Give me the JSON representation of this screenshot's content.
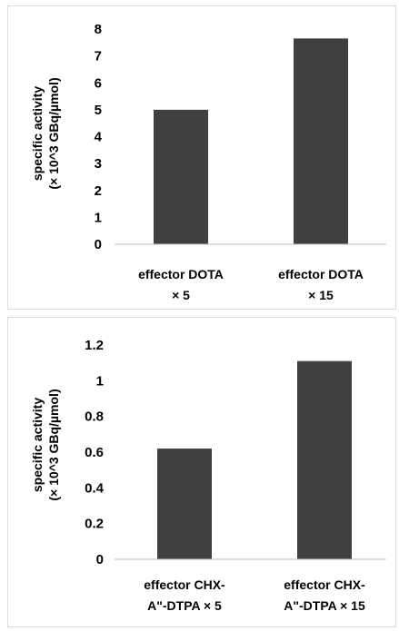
{
  "chart_data": [
    {
      "type": "bar",
      "categories": [
        "effector  DOTA × 5",
        "effector  DOTA × 15"
      ],
      "category_lines": [
        [
          "effector  DOTA",
          "× 5"
        ],
        [
          "effector  DOTA",
          "× 15"
        ]
      ],
      "values": [
        5.0,
        7.65
      ],
      "ylabel": "specific activity",
      "ylabel_line2": "(× 10^3 GBq/µmol)",
      "ylim": [
        0,
        8
      ],
      "yticks": [
        0,
        1,
        2,
        3,
        4,
        5,
        6,
        7,
        8
      ],
      "ytick_labels": [
        "0",
        "1",
        "2",
        "3",
        "4",
        "5",
        "6",
        "7",
        "8"
      ],
      "grid": false,
      "bar_color": "#404040"
    },
    {
      "type": "bar",
      "categories": [
        "effector CHX-A\"-DTPA × 5",
        "effector CHX-A\"-DTPA × 15"
      ],
      "category_lines": [
        [
          "effector CHX-",
          "A\"-DTPA × 5"
        ],
        [
          "effector CHX-",
          "A\"-DTPA × 15"
        ]
      ],
      "values": [
        0.62,
        1.11
      ],
      "ylabel": "specific activity",
      "ylabel_line2": "(× 10^3 GBq/µmol)",
      "ylim": [
        0,
        1.2
      ],
      "yticks": [
        0,
        0.2,
        0.4,
        0.6,
        0.8,
        1.0,
        1.2
      ],
      "ytick_labels": [
        "0",
        "0.2",
        "0.4",
        "0.6",
        "0.8",
        "1",
        "1.2"
      ],
      "grid": false,
      "bar_color": "#404040"
    }
  ]
}
